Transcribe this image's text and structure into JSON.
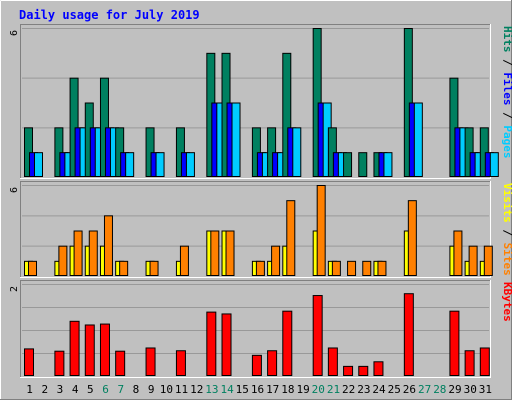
{
  "chart_data": {
    "type": "bar",
    "title": "Daily usage for July 2019",
    "days": [
      "1",
      "2",
      "3",
      "4",
      "5",
      "6",
      "7",
      "8",
      "9",
      "10",
      "11",
      "12",
      "13",
      "14",
      "15",
      "16",
      "17",
      "18",
      "19",
      "20",
      "21",
      "22",
      "23",
      "24",
      "25",
      "26",
      "27",
      "28",
      "29",
      "30",
      "31"
    ],
    "weekend_days": [
      "6",
      "7",
      "13",
      "14",
      "20",
      "21",
      "27",
      "28"
    ],
    "panels": [
      {
        "id": "hits-files-pages",
        "ymax": 6,
        "ymax_label": "6",
        "legend": [
          {
            "label": "Pages",
            "color": "#00ccff"
          },
          {
            "label": " / ",
            "color": "#000000"
          },
          {
            "label": "Files",
            "color": "#0000ff"
          },
          {
            "label": " / ",
            "color": "#000000"
          },
          {
            "label": "Hits",
            "color": "#008060"
          }
        ],
        "series": [
          {
            "name": "Hits",
            "color": "#008060",
            "values": [
              2,
              0,
              2,
              4,
              3,
              4,
              2,
              0,
              2,
              0,
              2,
              0,
              5,
              5,
              0,
              2,
              2,
              5,
              0,
              6,
              2,
              1,
              1,
              1,
              0,
              6,
              0,
              0,
              4,
              2,
              2
            ]
          },
          {
            "name": "Files",
            "color": "#0000ff",
            "values": [
              1,
              0,
              1,
              2,
              2,
              2,
              1,
              0,
              1,
              0,
              1,
              0,
              3,
              3,
              0,
              1,
              1,
              2,
              0,
              3,
              1,
              0,
              0,
              1,
              0,
              3,
              0,
              0,
              2,
              1,
              1
            ]
          },
          {
            "name": "Pages",
            "color": "#00ccff",
            "values": [
              1,
              0,
              1,
              2,
              2,
              2,
              1,
              0,
              1,
              0,
              1,
              0,
              3,
              3,
              0,
              1,
              1,
              2,
              0,
              3,
              1,
              0,
              0,
              1,
              0,
              3,
              0,
              0,
              2,
              1,
              1
            ]
          }
        ]
      },
      {
        "id": "visits-sites",
        "ymax": 6,
        "ymax_label": "6",
        "legend": [
          {
            "label": "Sites",
            "color": "#ff8000"
          },
          {
            "label": " / ",
            "color": "#000000"
          },
          {
            "label": "Visits",
            "color": "#ffff00"
          }
        ],
        "series": [
          {
            "name": "Visits",
            "color": "#ffff00",
            "values": [
              1,
              0,
              1,
              2,
              2,
              2,
              1,
              0,
              1,
              0,
              1,
              0,
              3,
              3,
              0,
              1,
              1,
              2,
              0,
              3,
              1,
              0,
              0,
              1,
              0,
              3,
              0,
              0,
              2,
              1,
              1
            ]
          },
          {
            "name": "Sites",
            "color": "#ff8000",
            "values": [
              1,
              0,
              2,
              3,
              3,
              4,
              1,
              0,
              1,
              0,
              2,
              0,
              3,
              3,
              0,
              1,
              2,
              5,
              0,
              6,
              1,
              1,
              1,
              1,
              0,
              5,
              0,
              0,
              3,
              2,
              2
            ]
          }
        ]
      },
      {
        "id": "kbytes",
        "ymax": 2,
        "ymax_label": "2",
        "legend": [
          {
            "label": "KBytes",
            "color": "#ff0000"
          }
        ],
        "series": [
          {
            "name": "KBytes",
            "color": "#ff0000",
            "values": [
              0.6,
              0,
              0.55,
              1.2,
              1.12,
              1.14,
              0.55,
              0,
              0.62,
              0,
              0.56,
              0,
              1.4,
              1.36,
              0,
              0.46,
              0.56,
              1.42,
              0,
              1.76,
              0.62,
              0.22,
              0.22,
              0.32,
              0,
              1.8,
              0,
              0,
              1.42,
              0.56,
              0.62
            ]
          }
        ]
      }
    ]
  }
}
